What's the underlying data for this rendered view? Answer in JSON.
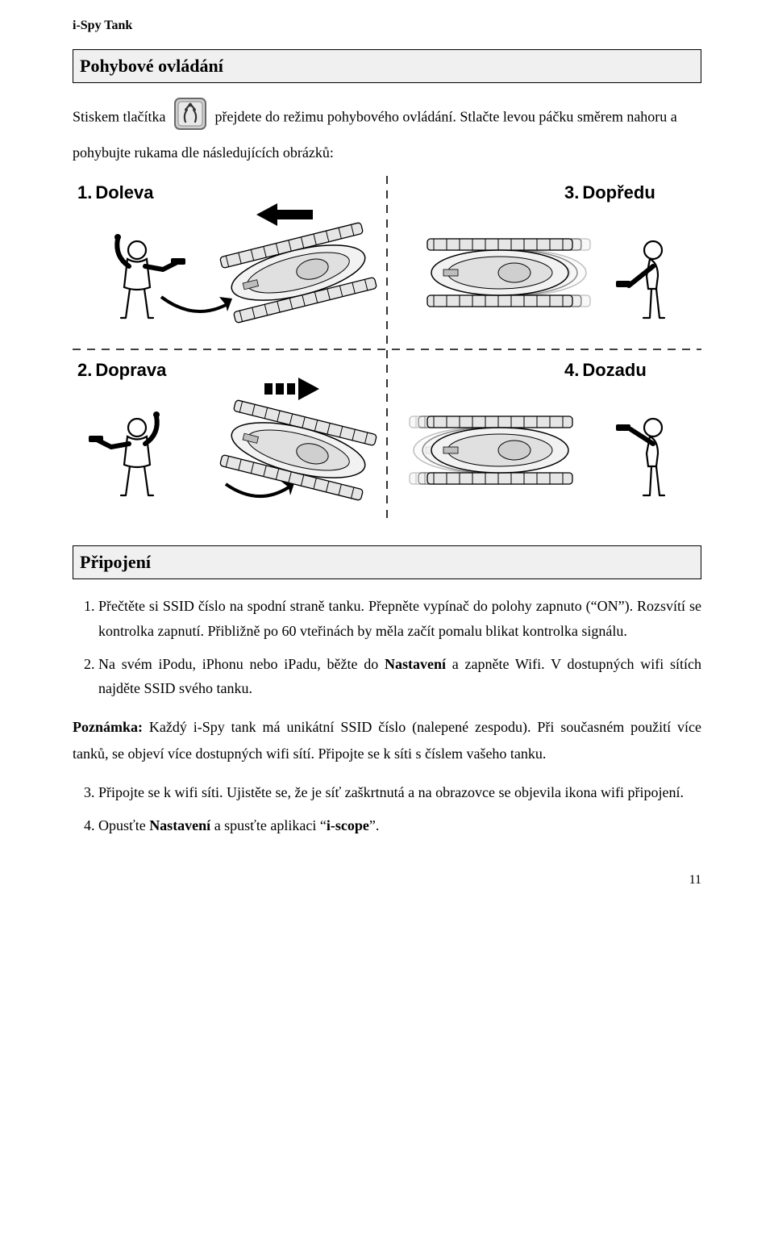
{
  "header": {
    "title": "i-Spy Tank"
  },
  "section1": {
    "heading": "Pohybové ovládání",
    "intro_before": "Stiskem tlačítka",
    "intro_after": " přejdete do režimu pohybového ovládání. Stlačte levou páčku směrem nahoru a pohybujte rukama dle následujících obrázků:",
    "diagram": {
      "q1": {
        "num": "1.",
        "label": "Doleva"
      },
      "q2": {
        "num": "2.",
        "label": "Doprava"
      },
      "q3": {
        "num": "3.",
        "label": "Dopředu"
      },
      "q4": {
        "num": "4.",
        "label": "Dozadu"
      }
    }
  },
  "section2": {
    "heading": "Připojení",
    "steps12": [
      "Přečtěte si SSID číslo na spodní straně tanku. Přepněte vypínač do polohy zapnuto (“ON”). Rozsvítí se kontrolka zapnutí. Přibližně po 60 vteřinách by měla začít pomalu blikat kontrolka signálu.",
      "Na svém iPodu, iPhonu nebo iPadu, běžte do <b>Nastavení</b> a zapněte Wifi. V dostupných wifi sítích najděte SSID svého tanku."
    ],
    "note_label": "Poznámka:",
    "note_text": " Každý i-Spy tank má unikátní SSID číslo (nalepené zespodu). Při současném použití více tanků, se objeví více dostupných wifi sítí. Připojte se k síti s číslem vašeho tanku.",
    "steps34": [
      "Připojte se k wifi síti. Ujistěte se, že je síť zaškrtnutá a na obrazovce se objevila ikona wifi připojení.",
      "Opusťte <b>Nastavení</b> a spusťte aplikaci “<b>i-scope</b>”."
    ]
  },
  "page_number": "11",
  "colors": {
    "icon_bg": "#cfcfcf",
    "icon_border": "#6a6a6a",
    "figure_gray": "#c8c8c8",
    "tank_light": "#e6e6e6",
    "tank_mid": "#bfbfbf"
  }
}
